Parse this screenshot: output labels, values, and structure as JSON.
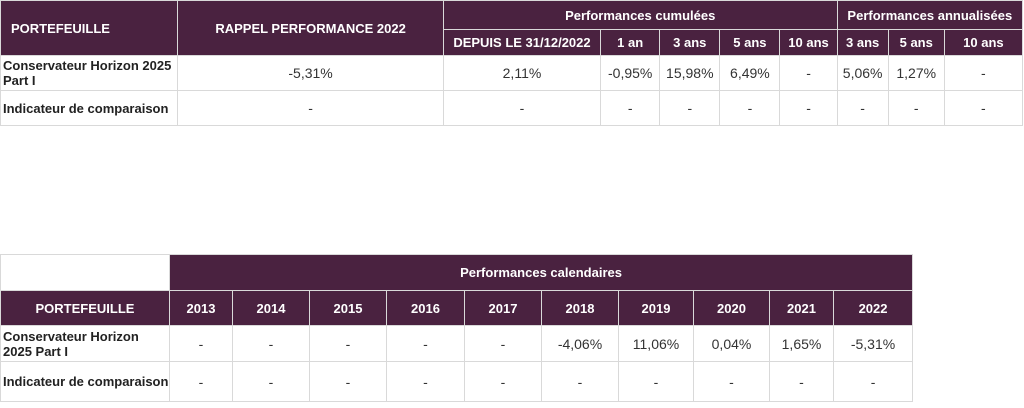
{
  "table1": {
    "portefeuille": "PORTEFEUILLE",
    "rappel": "RAPPEL PERFORMANCE 2022",
    "cumul_group": "Performances cumulées",
    "annual_group": "Performances annualisées",
    "cumul_cols": [
      "DEPUIS LE 31/12/2022",
      "1 an",
      "3 ans",
      "5 ans",
      "10 ans"
    ],
    "annual_cols": [
      "3 ans",
      "5 ans",
      "10 ans"
    ],
    "rows": [
      {
        "label": "Conservateur Horizon 2025 Part I",
        "rappel": "-5,31%",
        "cumul": [
          "2,11%",
          "-0,95%",
          "15,98%",
          "6,49%",
          "-"
        ],
        "annual": [
          "5,06%",
          "1,27%",
          "-"
        ]
      },
      {
        "label": "Indicateur de comparaison",
        "rappel": "-",
        "cumul": [
          "-",
          "-",
          "-",
          "-",
          "-"
        ],
        "annual": [
          "-",
          "-",
          "-"
        ]
      }
    ]
  },
  "table2": {
    "group": "Performances calendaires",
    "portefeuille": "PORTEFEUILLE",
    "years": [
      "2013",
      "2014",
      "2015",
      "2016",
      "2017",
      "2018",
      "2019",
      "2020",
      "2021",
      "2022"
    ],
    "rows": [
      {
        "label": "Conservateur Horizon 2025 Part I",
        "values": [
          "-",
          "-",
          "-",
          "-",
          "-",
          "-4,06%",
          "11,06%",
          "0,04%",
          "1,65%",
          "-5,31%"
        ]
      },
      {
        "label": "Indicateur de comparaison",
        "values": [
          "-",
          "-",
          "-",
          "-",
          "-",
          "-",
          "-",
          "-",
          "-",
          "-"
        ]
      }
    ]
  }
}
